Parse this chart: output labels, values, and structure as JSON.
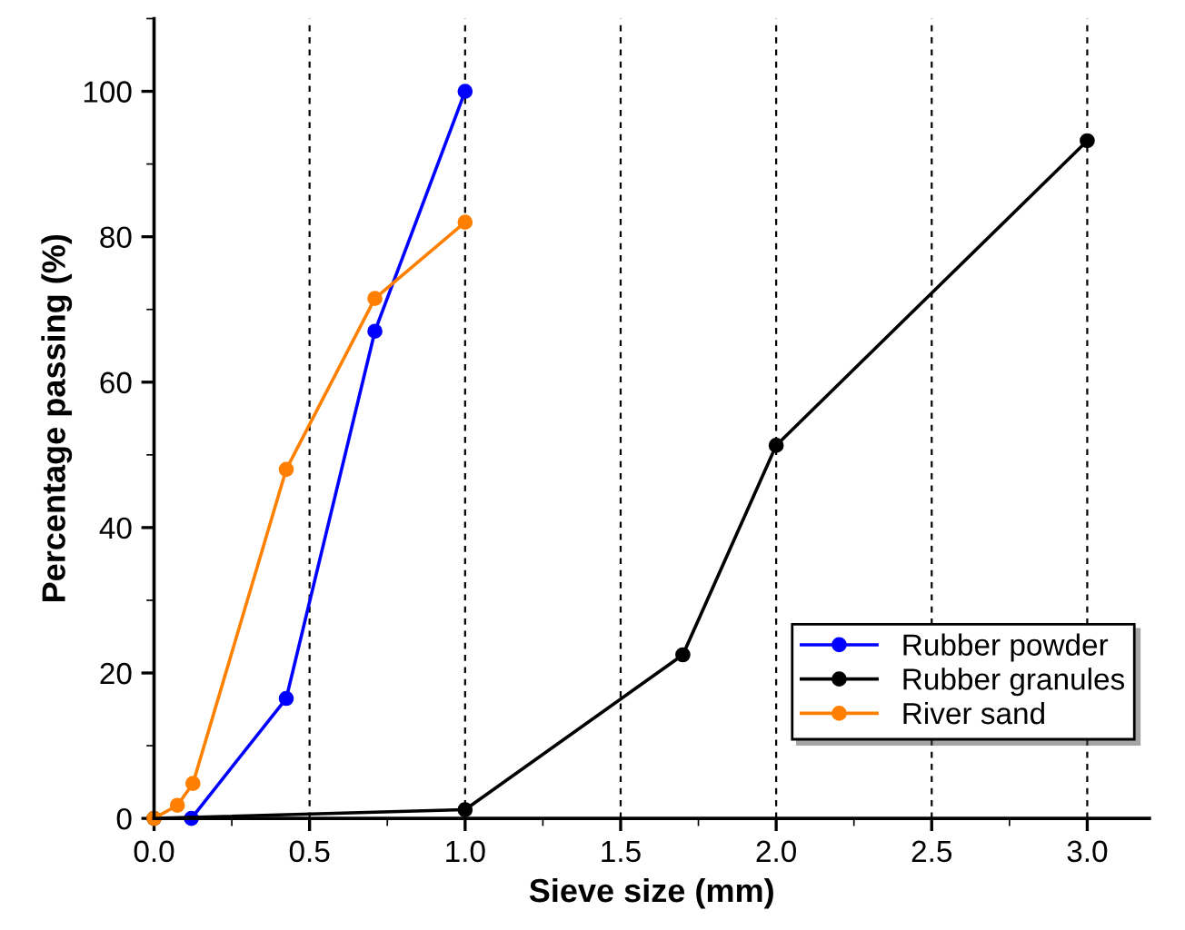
{
  "chart_data": {
    "type": "line",
    "xlabel": "Sieve size (mm)",
    "ylabel": "Percentage passing (%)",
    "xlim": [
      0,
      3.2
    ],
    "ylim": [
      0,
      110
    ],
    "xticks": [
      {
        "value": 0,
        "label": "0.0"
      },
      0.5,
      {
        "value": 1,
        "label": "1.0"
      },
      1.5,
      {
        "value": 2,
        "label": "2.0"
      },
      2.5,
      {
        "value": 3,
        "label": "3.0"
      }
    ],
    "yticks": [
      0,
      20,
      40,
      60,
      80,
      100
    ],
    "grid": "x",
    "legend": "lower right",
    "marker": "circle",
    "line_style": "solid",
    "series": [
      {
        "name": "Rubber powder",
        "color": "#0000ff",
        "x": [
          0.12,
          0.425,
          0.71,
          1.0
        ],
        "values": [
          0,
          16.5,
          67,
          100
        ]
      },
      {
        "name": "Rubber granules",
        "color": "#000000",
        "x": [
          0,
          1.0,
          1.7,
          2.0,
          3.0
        ],
        "values": [
          0,
          1.2,
          22.5,
          51.3,
          93.2
        ]
      },
      {
        "name": "River sand",
        "color": "#ff8000",
        "x": [
          0,
          0.075,
          0.125,
          0.425,
          0.71,
          1.0
        ],
        "values": [
          0,
          1.8,
          4.8,
          48,
          71.5,
          82
        ]
      }
    ]
  }
}
